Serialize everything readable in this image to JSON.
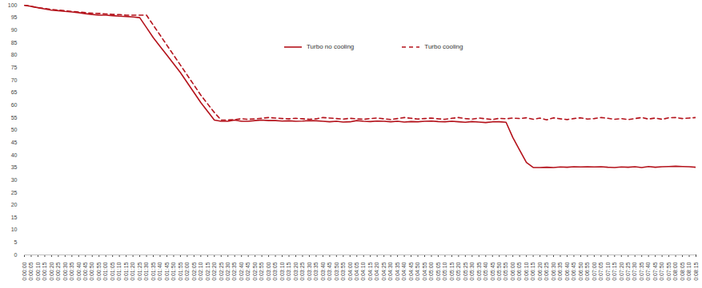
{
  "chart_data": {
    "type": "line",
    "categories": [
      "0:00:00",
      "0:00:05",
      "0:00:10",
      "0:00:15",
      "0:00:20",
      "0:00:25",
      "0:00:30",
      "0:00:35",
      "0:00:40",
      "0:00:45",
      "0:00:50",
      "0:00:55",
      "0:01:00",
      "0:01:05",
      "0:01:10",
      "0:01:15",
      "0:01:20",
      "0:01:25",
      "0:01:30",
      "0:01:35",
      "0:01:40",
      "0:01:45",
      "0:01:50",
      "0:01:55",
      "0:02:00",
      "0:02:05",
      "0:02:10",
      "0:02:15",
      "0:02:20",
      "0:02:25",
      "0:02:30",
      "0:02:35",
      "0:02:40",
      "0:02:45",
      "0:02:50",
      "0:02:55",
      "0:03:00",
      "0:03:05",
      "0:03:10",
      "0:03:15",
      "0:03:20",
      "0:03:25",
      "0:03:30",
      "0:03:35",
      "0:03:40",
      "0:03:45",
      "0:03:50",
      "0:03:55",
      "0:04:00",
      "0:04:05",
      "0:04:10",
      "0:04:15",
      "0:04:20",
      "0:04:25",
      "0:04:30",
      "0:04:35",
      "0:04:40",
      "0:04:45",
      "0:04:50",
      "0:04:55",
      "0:05:00",
      "0:05:05",
      "0:05:10",
      "0:05:15",
      "0:05:20",
      "0:05:25",
      "0:05:30",
      "0:05:35",
      "0:05:40",
      "0:05:45",
      "0:05:50",
      "0:05:55",
      "0:06:00",
      "0:06:05",
      "0:06:10",
      "0:06:15",
      "0:06:20",
      "0:06:25",
      "0:06:30",
      "0:06:35",
      "0:06:40",
      "0:06:45",
      "0:06:50",
      "0:06:55",
      "0:07:00",
      "0:07:05",
      "0:07:10",
      "0:07:15",
      "0:07:20",
      "0:07:25",
      "0:07:30",
      "0:07:35",
      "0:07:40",
      "0:07:45",
      "0:07:50",
      "0:07:55",
      "0:08:00",
      "0:08:05",
      "0:08:10",
      "0:08:15"
    ],
    "series": [
      {
        "name": "Turbo no cooling",
        "color": "#b4121b",
        "line_style": "solid",
        "values": [
          100,
          99.5,
          99,
          98.5,
          98,
          97.8,
          97.5,
          97.3,
          97,
          96.6,
          96.3,
          96,
          96,
          95.8,
          95.6,
          95.5,
          95.3,
          95,
          91,
          87,
          83.5,
          80,
          76.5,
          73,
          69,
          65,
          61,
          57.5,
          54,
          53.5,
          53.5,
          54,
          53.5,
          53.5,
          53.8,
          54,
          53.8,
          53.8,
          53.6,
          53.7,
          53.5,
          53.6,
          53.8,
          53.7,
          53.5,
          53.3,
          53.5,
          53.2,
          53.3,
          53.8,
          53.5,
          53.4,
          53.6,
          53.5,
          53.3,
          53.5,
          53.2,
          53.4,
          53.3,
          53.5,
          53.6,
          53.4,
          53.3,
          53.5,
          53.3,
          53.1,
          53.4,
          53.2,
          53,
          53.3,
          53.3,
          53.1,
          47,
          42,
          37,
          35,
          35,
          35.1,
          35,
          35.2,
          35.1,
          35.3,
          35.2,
          35.3,
          35.2,
          35.3,
          35.1,
          35,
          35.2,
          35.1,
          35.3,
          35,
          35.4,
          35.1,
          35.3,
          35.4,
          35.5,
          35.4,
          35.3,
          35.1
        ]
      },
      {
        "name": "Turbo cooling",
        "color": "#b4121b",
        "line_style": "dashed",
        "values": [
          100,
          99.5,
          99,
          98.7,
          98.3,
          98,
          97.8,
          97.5,
          97.3,
          97,
          96.8,
          96.7,
          96.5,
          96.3,
          96.2,
          96,
          96,
          96,
          96,
          92,
          88,
          84,
          80,
          76,
          72,
          68,
          64,
          60.5,
          57,
          54,
          54,
          54.2,
          54.5,
          54.3,
          54.5,
          54.7,
          55,
          54.8,
          54.6,
          54.5,
          54.7,
          54.5,
          54.3,
          54.5,
          55,
          54.8,
          54.6,
          54.4,
          54.7,
          54.5,
          54.3,
          54.6,
          54.8,
          54.5,
          54.2,
          54.6,
          55,
          54.7,
          54.4,
          54.6,
          54.8,
          54.5,
          54.3,
          54.7,
          55,
          54.6,
          54.4,
          54.8,
          54.5,
          54.2,
          54.7,
          54.5,
          54.8,
          54.6,
          54.9,
          54.3,
          54.8,
          54.1,
          54.9,
          54.5,
          54.2,
          54.6,
          54.9,
          54.4,
          54.6,
          55,
          54.7,
          54.3,
          54.6,
          54.2,
          54.6,
          55,
          54.4,
          54.8,
          54.3,
          54.9,
          55,
          54.6,
          54.8,
          55
        ]
      }
    ],
    "ylim": [
      0,
      100
    ],
    "yticks": [
      0,
      5,
      10,
      15,
      20,
      25,
      30,
      35,
      40,
      45,
      50,
      55,
      60,
      65,
      70,
      75,
      80,
      85,
      90,
      95,
      100
    ],
    "grid": false,
    "legend": "top"
  }
}
